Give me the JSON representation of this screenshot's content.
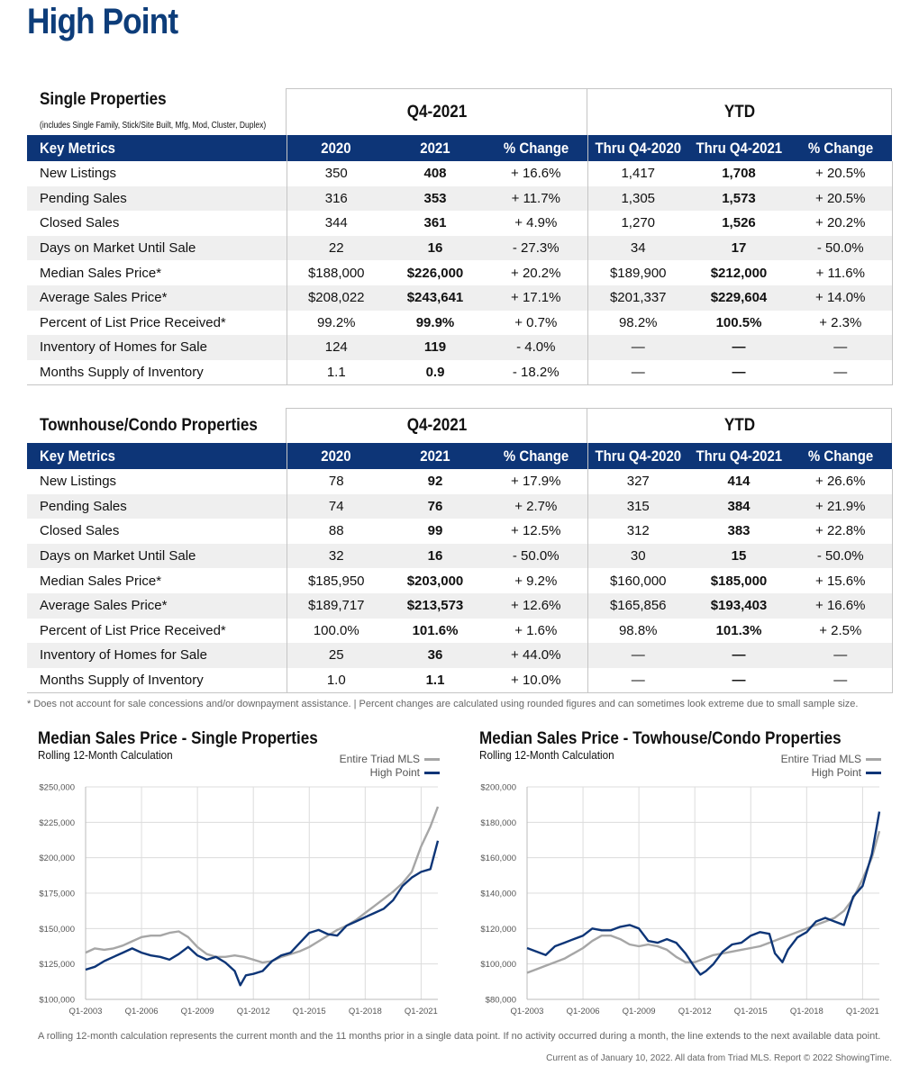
{
  "page": {
    "title": "High Point"
  },
  "single": {
    "name": "Single Properties",
    "note": "(includes Single Family, Stick/Site Built, Mfg, Mod, Cluster, Duplex)",
    "period_left": "Q4-2021",
    "period_right": "YTD",
    "headers": [
      "Key Metrics",
      "2020",
      "2021",
      "% Change",
      "Thru Q4-2020",
      "Thru Q4-2021",
      "% Change"
    ],
    "rows": [
      [
        "New Listings",
        "350",
        "408",
        "+ 16.6%",
        "1,417",
        "1,708",
        "+ 20.5%"
      ],
      [
        "Pending Sales",
        "316",
        "353",
        "+ 11.7%",
        "1,305",
        "1,573",
        "+ 20.5%"
      ],
      [
        "Closed Sales",
        "344",
        "361",
        "+ 4.9%",
        "1,270",
        "1,526",
        "+ 20.2%"
      ],
      [
        "Days on Market Until Sale",
        "22",
        "16",
        "- 27.3%",
        "34",
        "17",
        "- 50.0%"
      ],
      [
        "Median Sales Price*",
        "$188,000",
        "$226,000",
        "+ 20.2%",
        "$189,900",
        "$212,000",
        "+ 11.6%"
      ],
      [
        "Average Sales Price*",
        "$208,022",
        "$243,641",
        "+ 17.1%",
        "$201,337",
        "$229,604",
        "+ 14.0%"
      ],
      [
        "Percent of List Price Received*",
        "99.2%",
        "99.9%",
        "+ 0.7%",
        "98.2%",
        "100.5%",
        "+ 2.3%"
      ],
      [
        "Inventory of Homes for Sale",
        "124",
        "119",
        "- 4.0%",
        "—",
        "—",
        "—"
      ],
      [
        "Months Supply of Inventory",
        "1.1",
        "0.9",
        "- 18.2%",
        "—",
        "—",
        "—"
      ]
    ]
  },
  "townhouse": {
    "name": "Townhouse/Condo Properties",
    "period_left": "Q4-2021",
    "period_right": "YTD",
    "headers": [
      "Key Metrics",
      "2020",
      "2021",
      "% Change",
      "Thru Q4-2020",
      "Thru Q4-2021",
      "% Change"
    ],
    "rows": [
      [
        "New Listings",
        "78",
        "92",
        "+ 17.9%",
        "327",
        "414",
        "+ 26.6%"
      ],
      [
        "Pending Sales",
        "74",
        "76",
        "+ 2.7%",
        "315",
        "384",
        "+ 21.9%"
      ],
      [
        "Closed Sales",
        "88",
        "99",
        "+ 12.5%",
        "312",
        "383",
        "+ 22.8%"
      ],
      [
        "Days on Market Until Sale",
        "32",
        "16",
        "- 50.0%",
        "30",
        "15",
        "- 50.0%"
      ],
      [
        "Median Sales Price*",
        "$185,950",
        "$203,000",
        "+ 9.2%",
        "$160,000",
        "$185,000",
        "+ 15.6%"
      ],
      [
        "Average Sales Price*",
        "$189,717",
        "$213,573",
        "+ 12.6%",
        "$165,856",
        "$193,403",
        "+ 16.6%"
      ],
      [
        "Percent of List Price Received*",
        "100.0%",
        "101.6%",
        "+ 1.6%",
        "98.8%",
        "101.3%",
        "+ 2.5%"
      ],
      [
        "Inventory of Homes for Sale",
        "25",
        "36",
        "+ 44.0%",
        "—",
        "—",
        "—"
      ],
      [
        "Months Supply of Inventory",
        "1.0",
        "1.1",
        "+ 10.0%",
        "—",
        "—",
        "—"
      ]
    ]
  },
  "footnote": "* Does not account for sale concessions and/or downpayment assistance. | Percent changes are calculated using rounded figures and can sometimes look extreme due to small sample size.",
  "bottom_note": "A rolling 12-month calculation represents the current month and the 11 months prior in a single data point. If no activity occurred during a month, the line extends to the next available data point.",
  "credit": "Current as of January 10, 2022. All data from Triad MLS. Report © 2022 ShowingTime.",
  "colors": {
    "brand": "#0d3d7a",
    "header_bg": "#0d3577",
    "triad_line": "#a6a6a6",
    "local_line": "#0d3577"
  },
  "chart_data": [
    {
      "type": "line",
      "title": "Median Sales Price - Single Properties",
      "subtitle": "Rolling 12-Month Calculation",
      "x_ticks": [
        "Q1-2003",
        "Q1-2006",
        "Q1-2009",
        "Q1-2012",
        "Q1-2015",
        "Q1-2018",
        "Q1-2021"
      ],
      "y_ticks": [
        "$100,000",
        "$125,000",
        "$150,000",
        "$175,000",
        "$200,000",
        "$225,000",
        "$250,000"
      ],
      "ylim": [
        100000,
        250000
      ],
      "xlim": [
        2003.0,
        2021.9
      ],
      "grid": true,
      "legend": "top-right",
      "series": [
        {
          "name": "Entire Triad MLS",
          "color": "#a6a6a6",
          "x": [
            2003.0,
            2003.5,
            2004.0,
            2004.5,
            2005.0,
            2005.5,
            2006.0,
            2006.5,
            2007.0,
            2007.5,
            2008.0,
            2008.5,
            2009.0,
            2009.5,
            2010.0,
            2010.5,
            2011.0,
            2011.5,
            2012.0,
            2012.5,
            2013.0,
            2013.5,
            2014.0,
            2014.5,
            2015.0,
            2015.5,
            2016.0,
            2016.5,
            2017.0,
            2017.5,
            2018.0,
            2018.5,
            2019.0,
            2019.5,
            2020.0,
            2020.5,
            2021.0,
            2021.5,
            2021.9
          ],
          "values": [
            133000,
            136000,
            135000,
            136000,
            138000,
            141000,
            144000,
            145000,
            145000,
            147000,
            148000,
            144000,
            137000,
            132000,
            130000,
            130000,
            131000,
            130000,
            128000,
            126000,
            127000,
            130000,
            132000,
            134000,
            137000,
            141000,
            145000,
            149000,
            152000,
            156000,
            161000,
            166000,
            171000,
            176000,
            182000,
            190000,
            208000,
            222000,
            236000
          ]
        },
        {
          "name": "High Point",
          "color": "#0d3577",
          "x": [
            2003.0,
            2003.5,
            2004.0,
            2004.5,
            2005.0,
            2005.5,
            2006.0,
            2006.5,
            2007.0,
            2007.5,
            2008.0,
            2008.5,
            2009.0,
            2009.5,
            2010.0,
            2010.5,
            2011.0,
            2011.3,
            2011.6,
            2012.0,
            2012.5,
            2013.0,
            2013.5,
            2014.0,
            2014.5,
            2015.0,
            2015.5,
            2016.0,
            2016.5,
            2017.0,
            2017.5,
            2018.0,
            2018.5,
            2019.0,
            2019.5,
            2020.0,
            2020.5,
            2021.0,
            2021.5,
            2021.9
          ],
          "values": [
            121000,
            123000,
            127000,
            130000,
            133000,
            136000,
            133000,
            131000,
            130000,
            128000,
            132000,
            137000,
            131000,
            128000,
            130000,
            126000,
            120000,
            110000,
            117000,
            118000,
            120000,
            127000,
            131000,
            133000,
            140000,
            147000,
            149000,
            146000,
            145000,
            152000,
            155000,
            158000,
            161000,
            164000,
            170000,
            180000,
            186000,
            190000,
            192000,
            212000
          ]
        }
      ]
    },
    {
      "type": "line",
      "title": "Median Sales Price - Towhouse/Condo Properties",
      "subtitle": "Rolling 12-Month Calculation",
      "x_ticks": [
        "Q1-2003",
        "Q1-2006",
        "Q1-2009",
        "Q1-2012",
        "Q1-2015",
        "Q1-2018",
        "Q1-2021"
      ],
      "y_ticks": [
        "$80,000",
        "$100,000",
        "$120,000",
        "$140,000",
        "$160,000",
        "$180,000",
        "$200,000"
      ],
      "ylim": [
        80000,
        200000
      ],
      "xlim": [
        2003.0,
        2021.9
      ],
      "grid": true,
      "legend": "top-right",
      "series": [
        {
          "name": "Entire Triad MLS",
          "color": "#a6a6a6",
          "x": [
            2003.0,
            2003.5,
            2004.0,
            2004.5,
            2005.0,
            2005.5,
            2006.0,
            2006.5,
            2007.0,
            2007.5,
            2008.0,
            2008.5,
            2009.0,
            2009.5,
            2010.0,
            2010.5,
            2011.0,
            2011.5,
            2012.0,
            2012.5,
            2013.0,
            2013.5,
            2014.0,
            2014.5,
            2015.0,
            2015.5,
            2016.0,
            2016.5,
            2017.0,
            2017.5,
            2018.0,
            2018.5,
            2019.0,
            2019.5,
            2020.0,
            2020.5,
            2021.0,
            2021.5,
            2021.9
          ],
          "values": [
            95000,
            97000,
            99000,
            101000,
            103000,
            106000,
            109000,
            113000,
            116000,
            116000,
            114000,
            111000,
            110000,
            111000,
            110000,
            108000,
            104000,
            101000,
            101000,
            103000,
            105000,
            106000,
            107000,
            108000,
            109000,
            110000,
            112000,
            114000,
            116000,
            118000,
            120000,
            122000,
            124000,
            126000,
            130000,
            137000,
            148000,
            160000,
            175000
          ]
        },
        {
          "name": "High Point",
          "color": "#0d3577",
          "x": [
            2003.0,
            2003.5,
            2004.0,
            2004.5,
            2005.0,
            2005.5,
            2006.0,
            2006.5,
            2007.0,
            2007.5,
            2008.0,
            2008.5,
            2009.0,
            2009.5,
            2010.0,
            2010.5,
            2011.0,
            2011.5,
            2012.0,
            2012.3,
            2012.6,
            2013.0,
            2013.5,
            2014.0,
            2014.5,
            2015.0,
            2015.5,
            2016.0,
            2016.3,
            2016.7,
            2017.0,
            2017.5,
            2018.0,
            2018.5,
            2019.0,
            2019.5,
            2020.0,
            2020.5,
            2021.0,
            2021.5,
            2021.9
          ],
          "values": [
            109000,
            107000,
            105000,
            110000,
            112000,
            114000,
            116000,
            120000,
            119000,
            119000,
            121000,
            122000,
            120000,
            113000,
            112000,
            114000,
            112000,
            106000,
            98000,
            94000,
            96000,
            100000,
            107000,
            111000,
            112000,
            116000,
            118000,
            117000,
            106000,
            101000,
            108000,
            115000,
            118000,
            124000,
            126000,
            124000,
            122000,
            138000,
            144000,
            162000,
            186000
          ]
        }
      ]
    }
  ]
}
